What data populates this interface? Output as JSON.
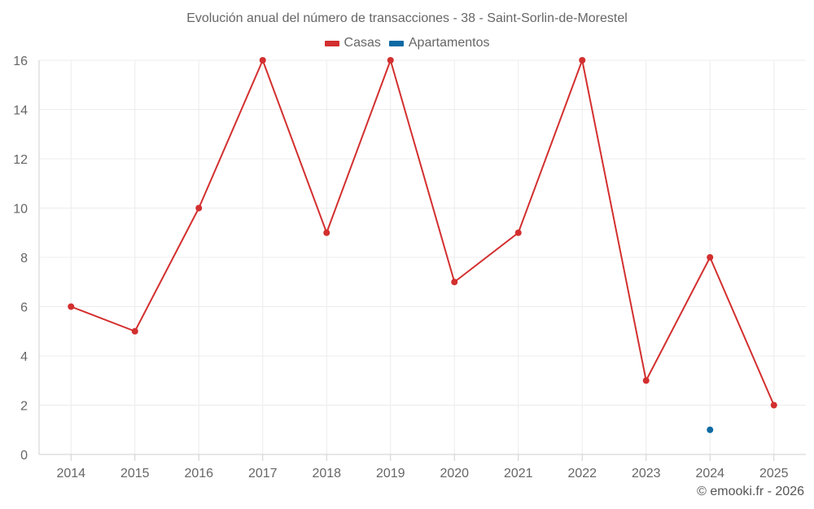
{
  "chart_data": {
    "type": "line",
    "title": "Evolución anual del número de transacciones - 38 - Saint-Sorlin-de-Morestel",
    "xlabel": "",
    "ylabel": "",
    "categories": [
      "2014",
      "2015",
      "2016",
      "2017",
      "2018",
      "2019",
      "2020",
      "2021",
      "2022",
      "2023",
      "2024",
      "2025"
    ],
    "ylim": [
      0,
      16
    ],
    "yticks": [
      0,
      2,
      4,
      6,
      8,
      10,
      12,
      14,
      16
    ],
    "grid": true,
    "legend_position": "top-center",
    "series": [
      {
        "name": "Casas",
        "color": "#d32f2f",
        "values": [
          6,
          5,
          10,
          16,
          9,
          16,
          7,
          9,
          16,
          3,
          8,
          2
        ]
      },
      {
        "name": "Apartamentos",
        "color": "#0d6aa3",
        "values": [
          null,
          null,
          null,
          null,
          null,
          null,
          null,
          null,
          null,
          null,
          1,
          null
        ]
      }
    ]
  },
  "credit": "© emooki.fr - 2026"
}
